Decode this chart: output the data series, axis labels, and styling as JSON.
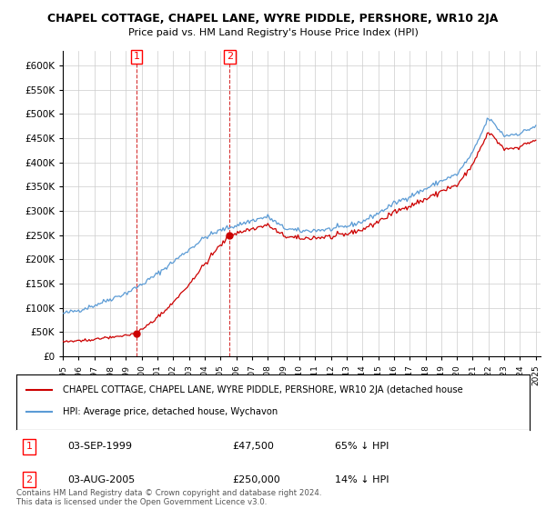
{
  "title": "CHAPEL COTTAGE, CHAPEL LANE, WYRE PIDDLE, PERSHORE, WR10 2JA",
  "subtitle": "Price paid vs. HM Land Registry's House Price Index (HPI)",
  "yticks": [
    0,
    50000,
    100000,
    150000,
    200000,
    250000,
    300000,
    350000,
    400000,
    450000,
    500000,
    550000,
    600000
  ],
  "ylim": [
    0,
    630000
  ],
  "x_start_year": 1995,
  "x_end_year": 2025,
  "sale1_year": 1999.667,
  "sale1_price": 47500,
  "sale1_date": "03-SEP-1999",
  "sale1_pct": "65% ↓ HPI",
  "sale2_year": 2005.583,
  "sale2_price": 250000,
  "sale2_date": "03-AUG-2005",
  "sale2_pct": "14% ↓ HPI",
  "hpi_color": "#5b9bd5",
  "price_color": "#cc0000",
  "bg_color": "#ffffff",
  "grid_color": "#cccccc",
  "legend_line1": "CHAPEL COTTAGE, CHAPEL LANE, WYRE PIDDLE, PERSHORE, WR10 2JA (detached house",
  "legend_line2": "HPI: Average price, detached house, Wychavon",
  "footnote": "Contains HM Land Registry data © Crown copyright and database right 2024.\nThis data is licensed under the Open Government Licence v3.0."
}
